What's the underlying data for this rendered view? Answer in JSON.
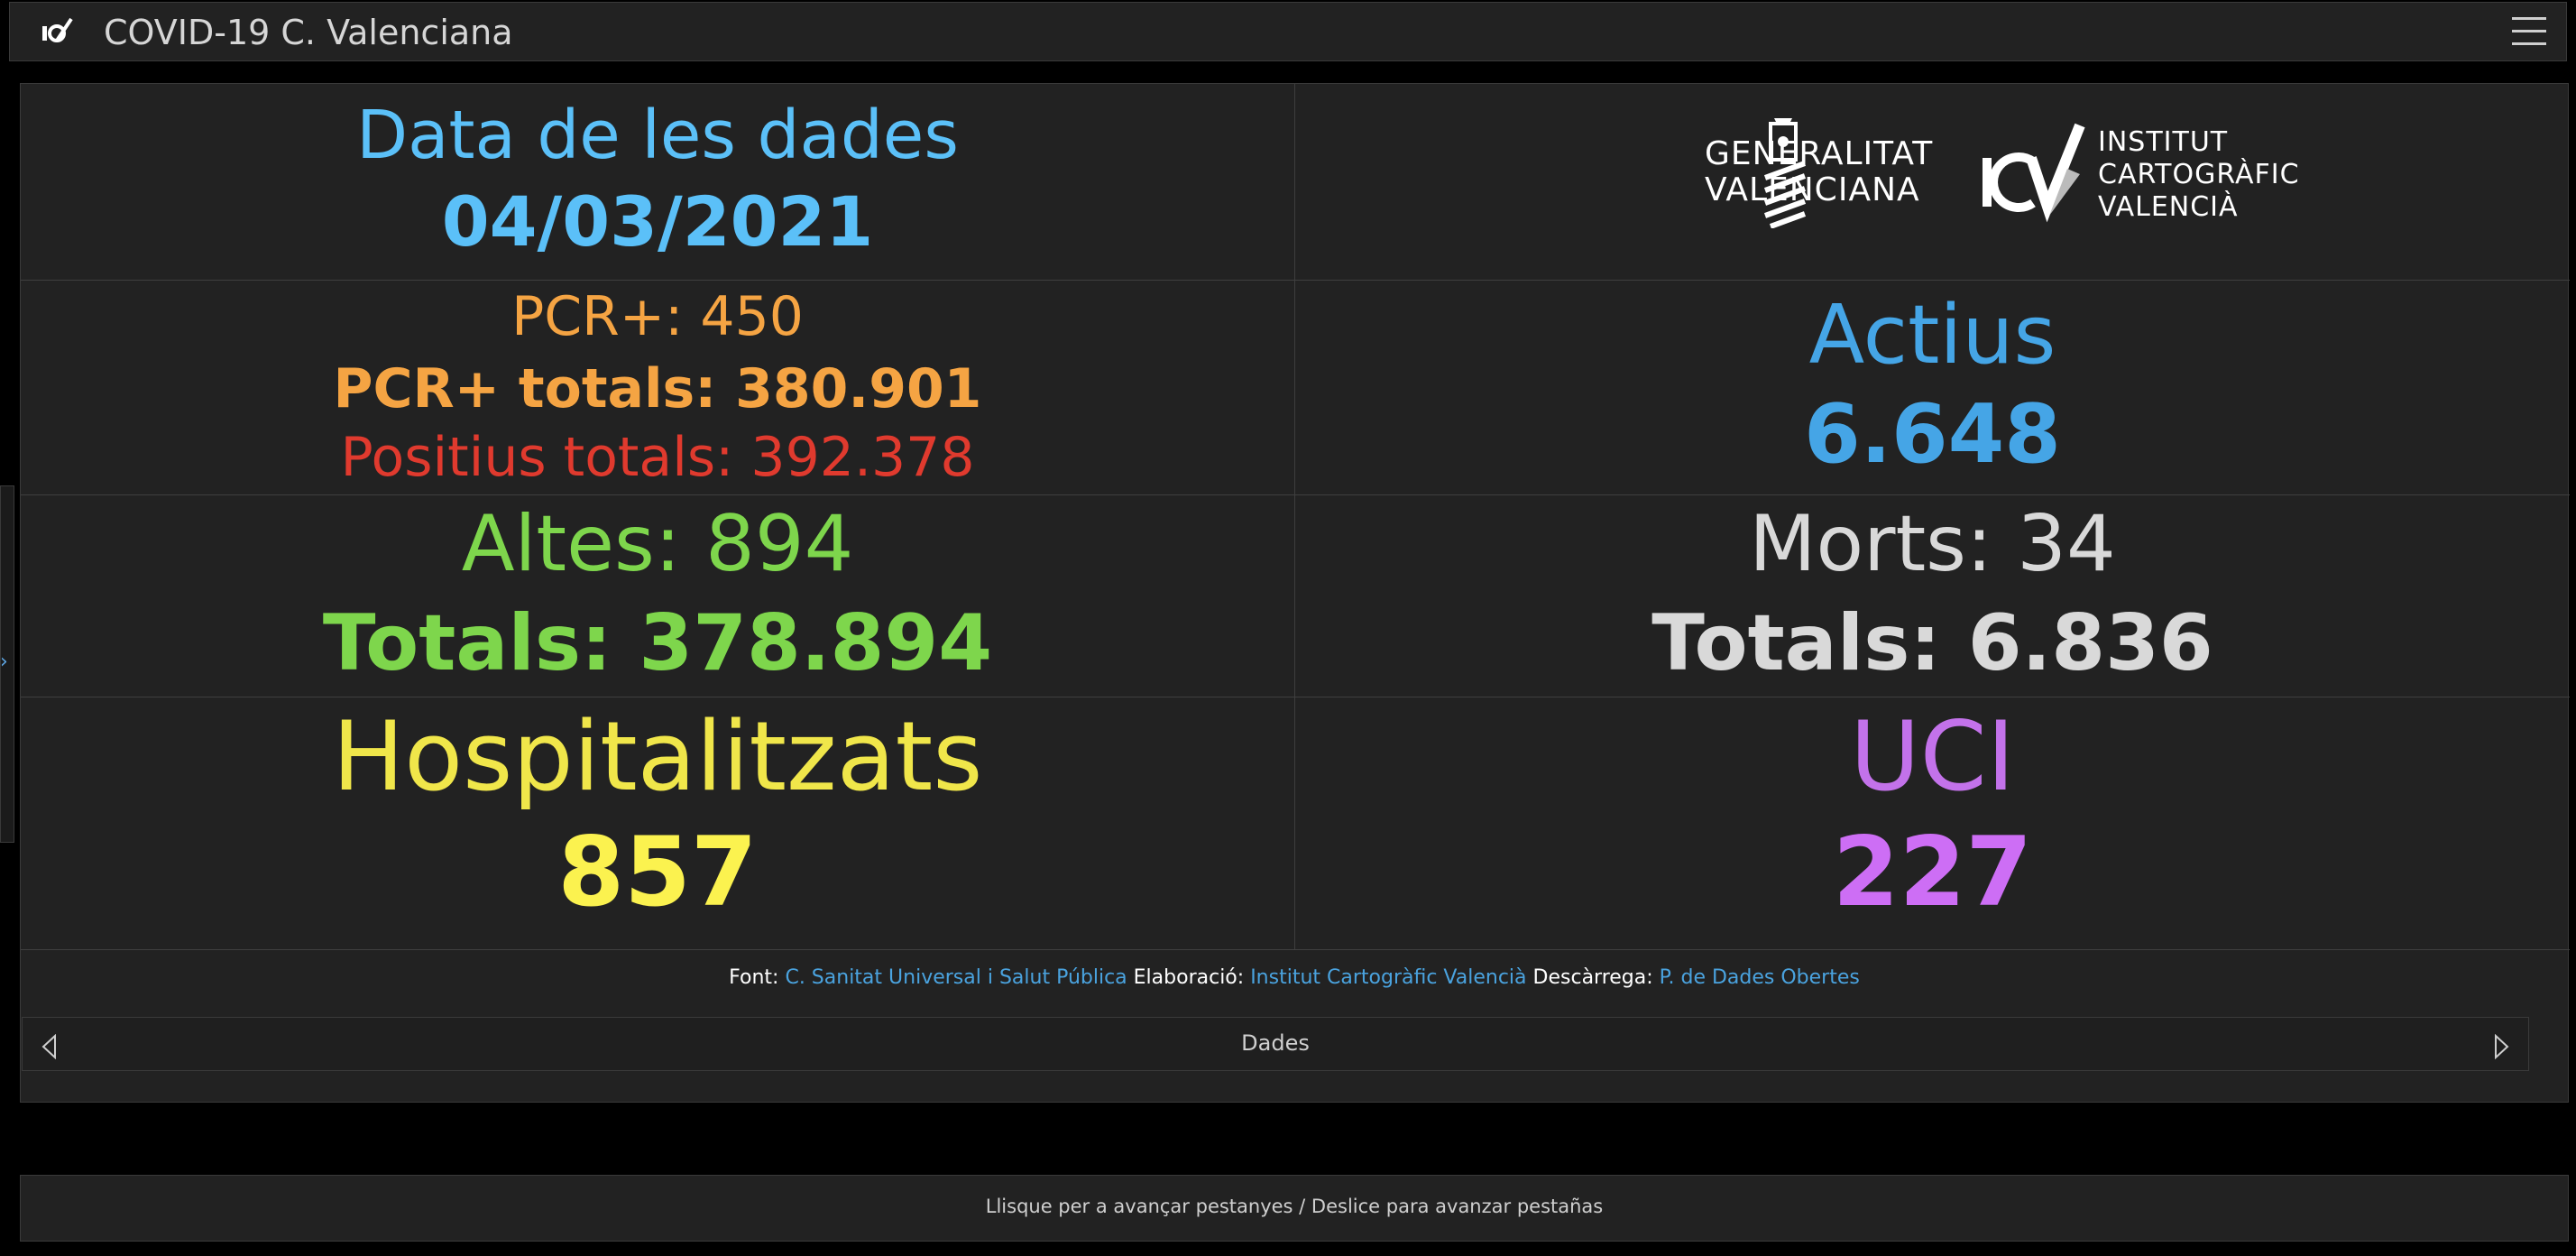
{
  "header": {
    "title": "COVID-19 C. Valenciana",
    "logo_icon": "icv-logo-icon",
    "menu_icon": "hamburger-menu-icon"
  },
  "stats": {
    "date": {
      "label": "Data de les dades",
      "value": "04/03/2021"
    },
    "pcr": {
      "daily": "PCR+: 450",
      "total": "PCR+ totals: 380.901",
      "positives_total": "Positius totals: 392.378"
    },
    "active": {
      "label": "Actius",
      "value": "6.648"
    },
    "discharges": {
      "daily": "Altes: 894",
      "total": "Totals: 378.894"
    },
    "deaths": {
      "daily": "Morts: 34",
      "total": "Totals: 6.836"
    },
    "hospitalized": {
      "label": "Hospitalitzats",
      "value": "857"
    },
    "icu": {
      "label": "UCI",
      "value": "227"
    }
  },
  "logos": {
    "gva": {
      "line1": "GENERALITAT",
      "line2": "VALENCIANA"
    },
    "icv": {
      "line1": "INSTITUT",
      "line2": "CARTOGRÀFIC",
      "line3": "VALENCIÀ"
    }
  },
  "footer": {
    "font_label": "Font:",
    "font_link": "C. Sanitat Universal i Salut Pública",
    "elab_label": "Elaboració:",
    "elab_link": "Institut Cartogràfic Valencià",
    "download_label": "Descàrrega:",
    "download_link": "P. de Dades Obertes"
  },
  "tabs": {
    "current": "Dades"
  },
  "bottom": {
    "hint": "Llisque per a avançar pestanyes / Deslice para avanzar pestañas"
  },
  "colors": {
    "date": "#5bc0f8",
    "pcr": "#f5a443",
    "positives": "#e03a2e",
    "active": "#45a5e6",
    "discharges": "#7ed64c",
    "deaths": "#d9d9d9",
    "hospitalized": "#f0e64a",
    "icu": "#c372ea",
    "link": "#4aa3df"
  }
}
